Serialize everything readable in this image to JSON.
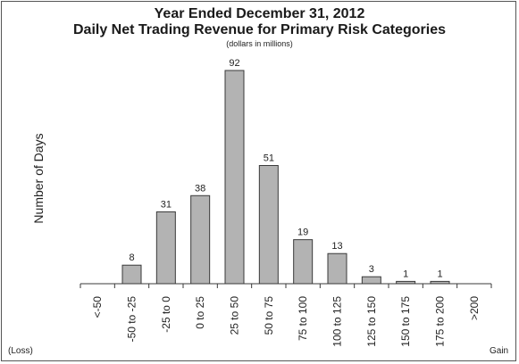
{
  "chart_data": {
    "type": "bar",
    "title": "Year Ended December 31, 2012",
    "subtitle": "Daily Net Trading Revenue for Primary Risk Categories",
    "units_note": "(dollars in millions)",
    "ylabel": "Number of Days",
    "x_left_note": "(Loss)",
    "x_right_note": "Gain",
    "categories": [
      "<-50",
      "-50 to -25",
      "-25 to 0",
      "0 to 25",
      "25 to 50",
      "50 to 75",
      "75 to 100",
      "100 to 125",
      "125 to 150",
      "150 to 175",
      "175 to 200",
      ">200"
    ],
    "values": [
      0,
      8,
      31,
      38,
      92,
      51,
      19,
      13,
      3,
      1,
      1,
      0
    ],
    "data_labels": [
      "",
      "8",
      "31",
      "38",
      "92",
      "51",
      "19",
      "13",
      "3",
      "1",
      "1",
      ""
    ],
    "ylim": [
      0,
      92
    ],
    "grid": false,
    "colors": {
      "bar_fill": "#b3b3b3",
      "bar_stroke": "#3a3a3a"
    }
  }
}
